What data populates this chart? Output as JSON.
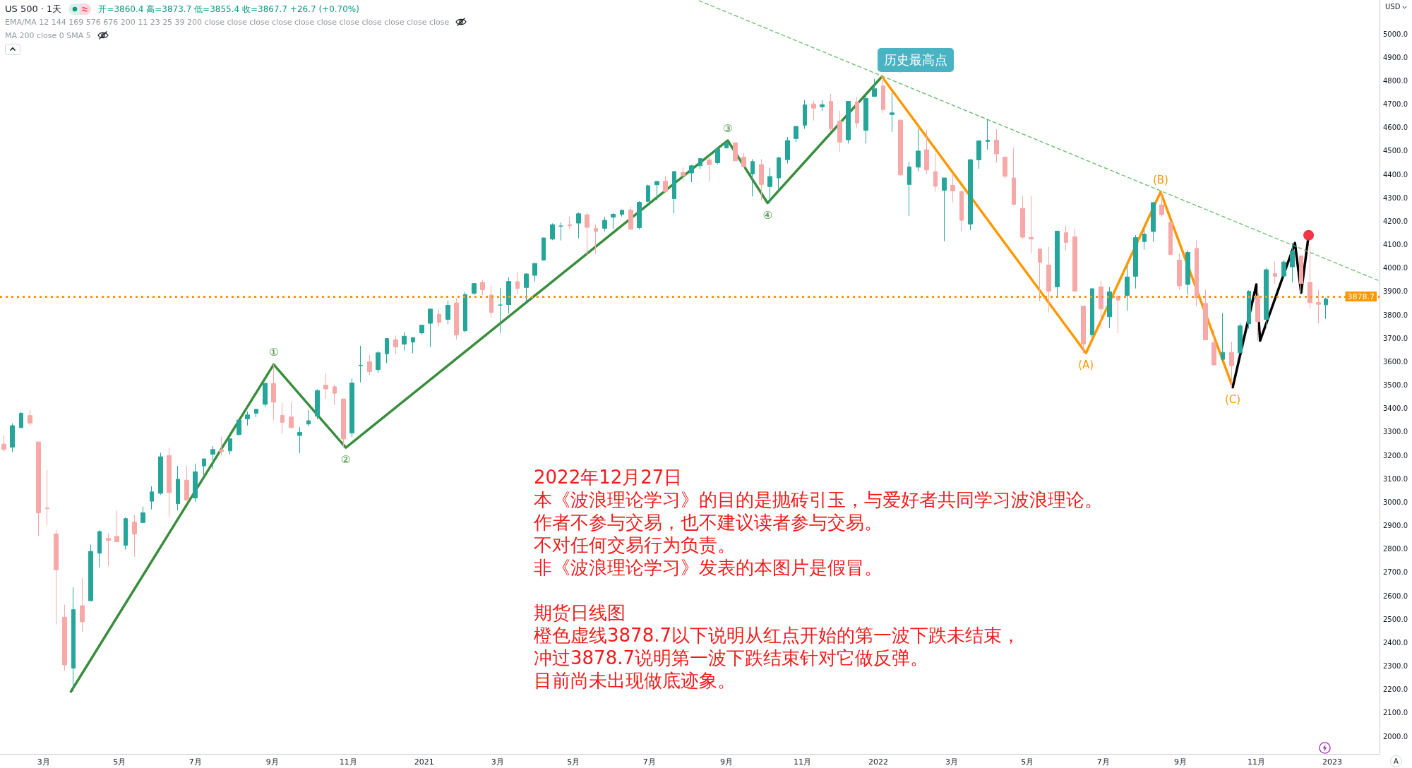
{
  "chart_data": {
    "type": "candlestick",
    "title": "US 500 · 1天",
    "ylabel": "USD",
    "x": [
      "2020-01-29",
      "2020-02-05",
      "2020-02-12",
      "2020-02-19",
      "2020-02-26",
      "2020-03-04",
      "2020-03-11",
      "2020-03-18",
      "2020-03-25",
      "2020-04-01",
      "2020-04-08",
      "2020-04-15",
      "2020-04-22",
      "2020-04-29",
      "2020-05-06",
      "2020-05-13",
      "2020-05-20",
      "2020-05-27",
      "2020-06-03",
      "2020-06-10",
      "2020-06-17",
      "2020-06-24",
      "2020-07-01",
      "2020-07-08",
      "2020-07-15",
      "2020-07-22",
      "2020-07-29",
      "2020-08-05",
      "2020-08-12",
      "2020-08-19",
      "2020-08-26",
      "2020-09-02",
      "2020-09-09",
      "2020-09-16",
      "2020-09-23",
      "2020-09-30",
      "2020-10-07",
      "2020-10-14",
      "2020-10-21",
      "2020-10-28",
      "2020-11-04",
      "2020-11-11",
      "2020-11-18",
      "2020-11-25",
      "2020-12-02",
      "2020-12-09",
      "2020-12-16",
      "2020-12-23",
      "2020-12-30",
      "2021-01-06",
      "2021-01-13",
      "2021-01-20",
      "2021-01-27",
      "2021-02-03",
      "2021-02-10",
      "2021-02-17",
      "2021-02-24",
      "2021-03-03",
      "2021-03-10",
      "2021-03-17",
      "2021-03-24",
      "2021-03-31",
      "2021-04-07",
      "2021-04-14",
      "2021-04-21",
      "2021-04-28",
      "2021-05-05",
      "2021-05-12",
      "2021-05-19",
      "2021-05-26",
      "2021-06-02",
      "2021-06-09",
      "2021-06-16",
      "2021-06-23",
      "2021-06-30",
      "2021-07-07",
      "2021-07-14",
      "2021-07-21",
      "2021-07-28",
      "2021-08-04",
      "2021-08-11",
      "2021-08-18",
      "2021-08-25",
      "2021-09-01",
      "2021-09-08",
      "2021-09-15",
      "2021-09-22",
      "2021-09-29",
      "2021-10-06",
      "2021-10-13",
      "2021-10-20",
      "2021-10-27",
      "2021-11-03",
      "2021-11-10",
      "2021-11-17",
      "2021-11-24",
      "2021-12-01",
      "2021-12-08",
      "2021-12-15",
      "2021-12-22",
      "2021-12-29",
      "2022-01-05",
      "2022-01-12",
      "2022-01-19",
      "2022-01-26",
      "2022-02-02",
      "2022-02-09",
      "2022-02-16",
      "2022-02-23",
      "2022-03-02",
      "2022-03-09",
      "2022-03-16",
      "2022-03-23",
      "2022-03-30",
      "2022-04-06",
      "2022-04-13",
      "2022-04-20",
      "2022-04-27",
      "2022-05-04",
      "2022-05-11",
      "2022-05-18",
      "2022-05-25",
      "2022-06-01",
      "2022-06-08",
      "2022-06-15",
      "2022-06-22",
      "2022-06-29",
      "2022-07-06",
      "2022-07-13",
      "2022-07-20",
      "2022-07-27",
      "2022-08-03",
      "2022-08-10",
      "2022-08-17",
      "2022-08-24",
      "2022-08-31",
      "2022-09-07",
      "2022-09-14",
      "2022-09-21",
      "2022-09-28",
      "2022-10-05",
      "2022-10-12",
      "2022-10-19",
      "2022-10-26",
      "2022-11-02",
      "2022-11-09",
      "2022-11-16",
      "2022-11-23",
      "2022-11-30",
      "2022-12-07",
      "2022-12-14",
      "2022-12-21",
      "2022-12-27"
    ],
    "ohlc": [
      [
        3248,
        3285,
        3214,
        3225
      ],
      [
        3235,
        3337,
        3214,
        3327
      ],
      [
        3319,
        3385,
        3315,
        3380
      ],
      [
        3370,
        3393,
        3328,
        3338
      ],
      [
        3257,
        3259,
        2855,
        2954
      ],
      [
        2975,
        3137,
        2901,
        2972
      ],
      [
        2864,
        2883,
        2478,
        2711
      ],
      [
        2509,
        2562,
        2280,
        2305
      ],
      [
        2291,
        2637,
        2191,
        2541
      ],
      [
        2558,
        2676,
        2447,
        2489
      ],
      [
        2579,
        2819,
        2579,
        2790
      ],
      [
        2782,
        2880,
        2721,
        2875
      ],
      [
        2845,
        2868,
        2727,
        2837
      ],
      [
        2854,
        2965,
        2831,
        2831
      ],
      [
        2816,
        2935,
        2798,
        2930
      ],
      [
        2915,
        2945,
        2767,
        2864
      ],
      [
        2913,
        2981,
        2913,
        2955
      ],
      [
        3004,
        3068,
        2969,
        3044
      ],
      [
        3038,
        3211,
        3032,
        3194
      ],
      [
        3199,
        3233,
        2936,
        3041
      ],
      [
        2994,
        3155,
        2966,
        3098
      ],
      [
        3094,
        3155,
        3004,
        3009
      ],
      [
        3018,
        3165,
        3000,
        3130
      ],
      [
        3155,
        3186,
        3115,
        3185
      ],
      [
        3205,
        3240,
        3142,
        3225
      ],
      [
        3224,
        3280,
        3200,
        3216
      ],
      [
        3219,
        3272,
        3205,
        3271
      ],
      [
        3289,
        3352,
        3284,
        3351
      ],
      [
        3356,
        3387,
        3328,
        3373
      ],
      [
        3380,
        3399,
        3363,
        3397
      ],
      [
        3418,
        3509,
        3407,
        3508
      ],
      [
        3507,
        3588,
        3349,
        3427
      ],
      [
        3371,
        3425,
        3293,
        3341
      ],
      [
        3364,
        3429,
        3314,
        3319
      ],
      [
        3285,
        3320,
        3209,
        3298
      ],
      [
        3334,
        3393,
        3324,
        3348
      ],
      [
        3367,
        3482,
        3354,
        3477
      ],
      [
        3500,
        3550,
        3442,
        3484
      ],
      [
        3493,
        3502,
        3415,
        3465
      ],
      [
        3441,
        3441,
        3233,
        3270
      ],
      [
        3296,
        3529,
        3279,
        3509
      ],
      [
        3583,
        3668,
        3512,
        3585
      ],
      [
        3600,
        3628,
        3543,
        3558
      ],
      [
        3566,
        3645,
        3553,
        3638
      ],
      [
        3634,
        3699,
        3594,
        3699
      ],
      [
        3694,
        3712,
        3633,
        3663
      ],
      [
        3675,
        3726,
        3648,
        3709
      ],
      [
        3684,
        3703,
        3636,
        3703
      ],
      [
        3723,
        3756,
        3715,
        3756
      ],
      [
        3764,
        3826,
        3663,
        3825
      ],
      [
        3803,
        3823,
        3749,
        3768
      ],
      [
        3781,
        3861,
        3760,
        3841
      ],
      [
        3851,
        3870,
        3694,
        3714
      ],
      [
        3732,
        3898,
        3725,
        3887
      ],
      [
        3892,
        3935,
        3885,
        3934
      ],
      [
        3939,
        3950,
        3884,
        3907
      ],
      [
        3885,
        3928,
        3789,
        3811
      ],
      [
        3842,
        3915,
        3723,
        3842
      ],
      [
        3844,
        3960,
        3806,
        3943
      ],
      [
        3942,
        3983,
        3887,
        3913
      ],
      [
        3917,
        3978,
        3853,
        3975
      ],
      [
        3969,
        4020,
        3944,
        4020
      ],
      [
        4034,
        4129,
        4034,
        4129
      ],
      [
        4124,
        4191,
        4119,
        4185
      ],
      [
        4179,
        4195,
        4118,
        4180
      ],
      [
        4185,
        4219,
        4165,
        4181
      ],
      [
        4192,
        4238,
        4128,
        4232
      ],
      [
        4228,
        4236,
        4056,
        4174
      ],
      [
        4169,
        4187,
        4061,
        4156
      ],
      [
        4170,
        4219,
        4156,
        4204
      ],
      [
        4217,
        4234,
        4168,
        4230
      ],
      [
        4229,
        4249,
        4220,
        4247
      ],
      [
        4248,
        4262,
        4164,
        4166
      ],
      [
        4173,
        4286,
        4165,
        4281
      ],
      [
        4285,
        4356,
        4281,
        4352
      ],
      [
        4356,
        4372,
        4290,
        4370
      ],
      [
        4372,
        4394,
        4321,
        4327
      ],
      [
        4296,
        4415,
        4233,
        4412
      ],
      [
        4409,
        4430,
        4373,
        4395
      ],
      [
        4406,
        4440,
        4367,
        4437
      ],
      [
        4437,
        4468,
        4422,
        4468
      ],
      [
        4462,
        4480,
        4368,
        4442
      ],
      [
        4450,
        4510,
        4443,
        4509
      ],
      [
        4513,
        4545,
        4513,
        4535
      ],
      [
        4535,
        4536,
        4457,
        4458
      ],
      [
        4474,
        4492,
        4427,
        4433
      ],
      [
        4402,
        4465,
        4306,
        4455
      ],
      [
        4442,
        4465,
        4289,
        4357
      ],
      [
        4348,
        4429,
        4278,
        4391
      ],
      [
        4385,
        4475,
        4330,
        4471
      ],
      [
        4463,
        4560,
        4447,
        4545
      ],
      [
        4553,
        4608,
        4538,
        4605
      ],
      [
        4610,
        4718,
        4595,
        4697
      ],
      [
        4701,
        4714,
        4630,
        4683
      ],
      [
        4689,
        4717,
        4672,
        4698
      ],
      [
        4712,
        4744,
        4585,
        4595
      ],
      [
        4628,
        4672,
        4495,
        4538
      ],
      [
        4548,
        4713,
        4532,
        4712
      ],
      [
        4710,
        4731,
        4600,
        4620
      ],
      [
        4588,
        4740,
        4532,
        4725
      ],
      [
        4733,
        4808,
        4733,
        4766
      ],
      [
        4778,
        4818,
        4662,
        4677
      ],
      [
        4656,
        4749,
        4582,
        4663
      ],
      [
        4632,
        4632,
        4395,
        4398
      ],
      [
        4357,
        4453,
        4222,
        4432
      ],
      [
        4431,
        4595,
        4414,
        4500
      ],
      [
        4505,
        4590,
        4401,
        4419
      ],
      [
        4412,
        4490,
        4327,
        4349
      ],
      [
        4332,
        4385,
        4115,
        4385
      ],
      [
        4354,
        4402,
        4279,
        4329
      ],
      [
        4327,
        4327,
        4157,
        4204
      ],
      [
        4188,
        4465,
        4162,
        4463
      ],
      [
        4462,
        4546,
        4424,
        4543
      ],
      [
        4541,
        4637,
        4506,
        4546
      ],
      [
        4547,
        4593,
        4450,
        4488
      ],
      [
        4474,
        4475,
        4381,
        4392
      ],
      [
        4385,
        4513,
        4269,
        4272
      ],
      [
        4255,
        4308,
        4124,
        4132
      ],
      [
        4131,
        4308,
        4062,
        4124
      ],
      [
        4081,
        4082,
        3859,
        4024
      ],
      [
        4013,
        4090,
        3811,
        3901
      ],
      [
        3920,
        4159,
        3875,
        4158
      ],
      [
        4151,
        4180,
        4074,
        4109
      ],
      [
        4134,
        4169,
        3901,
        3901
      ],
      [
        3838,
        3838,
        3637,
        3675
      ],
      [
        3715,
        3913,
        3705,
        3912
      ],
      [
        3920,
        3946,
        3741,
        3825
      ],
      [
        3792,
        3918,
        3743,
        3899
      ],
      [
        3880,
        3880,
        3722,
        3863
      ],
      [
        3883,
        4012,
        3818,
        3962
      ],
      [
        3965,
        4141,
        3913,
        4130
      ],
      [
        4113,
        4168,
        4079,
        4145
      ],
      [
        4156,
        4280,
        4112,
        4280
      ],
      [
        4270,
        4325,
        4218,
        4228
      ],
      [
        4195,
        4203,
        4057,
        4058
      ],
      [
        4034,
        4062,
        3907,
        3924
      ],
      [
        3930,
        4076,
        3887,
        4067
      ],
      [
        4084,
        4119,
        3837,
        3873
      ],
      [
        3849,
        3907,
        3693,
        3693
      ],
      [
        3682,
        3736,
        3584,
        3586
      ],
      [
        3610,
        3807,
        3604,
        3640
      ],
      [
        3640,
        3685,
        3491,
        3583
      ],
      [
        3638,
        3765,
        3638,
        3753
      ],
      [
        3762,
        3905,
        3741,
        3901
      ],
      [
        3881,
        3930,
        3690,
        3771
      ],
      [
        3780,
        4001,
        3750,
        3993
      ],
      [
        3977,
        4028,
        3933,
        3965
      ],
      [
        3966,
        4034,
        3956,
        4026
      ],
      [
        4005,
        4107,
        3939,
        4072
      ],
      [
        4052,
        4052,
        3895,
        3934
      ],
      [
        3939,
        4101,
        3827,
        3852
      ],
      [
        3853,
        3906,
        3764,
        3845
      ],
      [
        3843,
        3874,
        3784,
        3868
      ]
    ],
    "colors": [
      "#f7a9a8",
      "#26a69a",
      "#26a69a",
      "#f7a9a8",
      "#f7a9a8",
      "#f7a9a8",
      "#f7a9a8",
      "#f7a9a8",
      "#26a69a",
      "#f7a9a8",
      "#26a69a",
      "#26a69a",
      "#f7a9a8",
      "#f7a9a8",
      "#26a69a",
      "#f7a9a8",
      "#26a69a",
      "#26a69a",
      "#26a69a",
      "#f7a9a8",
      "#26a69a",
      "#f7a9a8",
      "#26a69a",
      "#26a69a",
      "#26a69a",
      "#f7a9a8",
      "#26a69a",
      "#26a69a",
      "#26a69a",
      "#26a69a",
      "#26a69a",
      "#f7a9a8",
      "#f7a9a8",
      "#f7a9a8",
      "#26a69a",
      "#26a69a",
      "#26a69a",
      "#f7a9a8",
      "#f7a9a8",
      "#f7a9a8",
      "#26a69a",
      "#26a69a",
      "#f7a9a8",
      "#26a69a",
      "#26a69a",
      "#f7a9a8",
      "#26a69a",
      "#26a69a",
      "#26a69a",
      "#26a69a",
      "#f7a9a8",
      "#26a69a",
      "#f7a9a8",
      "#26a69a",
      "#26a69a",
      "#f7a9a8",
      "#f7a9a8",
      "#26a69a",
      "#26a69a",
      "#f7a9a8",
      "#26a69a",
      "#26a69a",
      "#26a69a",
      "#26a69a",
      "#26a69a",
      "#f7a9a8",
      "#26a69a",
      "#f7a9a8",
      "#f7a9a8",
      "#26a69a",
      "#26a69a",
      "#26a69a",
      "#f7a9a8",
      "#26a69a",
      "#26a69a",
      "#26a69a",
      "#f7a9a8",
      "#26a69a",
      "#f7a9a8",
      "#26a69a",
      "#26a69a",
      "#f7a9a8",
      "#26a69a",
      "#26a69a",
      "#f7a9a8",
      "#f7a9a8",
      "#26a69a",
      "#f7a9a8",
      "#26a69a",
      "#26a69a",
      "#26a69a",
      "#26a69a",
      "#26a69a",
      "#f7a9a8",
      "#26a69a",
      "#f7a9a8",
      "#f7a9a8",
      "#26a69a",
      "#f7a9a8",
      "#26a69a",
      "#26a69a",
      "#f7a9a8",
      "#26a69a",
      "#f7a9a8",
      "#26a69a",
      "#26a69a",
      "#f7a9a8",
      "#f7a9a8",
      "#26a69a",
      "#f7a9a8",
      "#f7a9a8",
      "#26a69a",
      "#26a69a",
      "#26a69a",
      "#f7a9a8",
      "#f7a9a8",
      "#f7a9a8",
      "#f7a9a8",
      "#f7a9a8",
      "#f7a9a8",
      "#f7a9a8",
      "#26a69a",
      "#f7a9a8",
      "#f7a9a8",
      "#f7a9a8",
      "#26a69a",
      "#f7a9a8",
      "#26a69a",
      "#f7a9a8",
      "#26a69a",
      "#26a69a",
      "#26a69a",
      "#26a69a",
      "#f7a9a8",
      "#f7a9a8",
      "#f7a9a8",
      "#26a69a",
      "#f7a9a8",
      "#f7a9a8",
      "#f7a9a8",
      "#26a69a",
      "#f7a9a8",
      "#26a69a",
      "#26a69a",
      "#f7a9a8",
      "#26a69a",
      "#f7a9a8",
      "#26a69a",
      "#26a69a",
      "#f7a9a8",
      "#f7a9a8",
      "#f7a9a8",
      "#26a69a"
    ],
    "series": [
      {
        "type": "line",
        "color": "#388e3c",
        "x": [
          "2020-03-23",
          "2020-09-02",
          "2020-10-30",
          "2021-09-02",
          "2021-10-04",
          "2022-01-04"
        ],
        "values": [
          2191,
          3588,
          3233,
          4545,
          4278,
          4818
        ],
        "line_style": "solid"
      },
      {
        "type": "line",
        "color": "#ff9800",
        "x": [
          "2022-01-04",
          "2022-06-17",
          "2022-08-16",
          "2022-10-13"
        ],
        "values": [
          4818,
          3637,
          4325,
          3491
        ],
        "line_style": "solid"
      },
      {
        "type": "line",
        "color": "#000000",
        "x": [
          "2022-10-13",
          "2022-11-01",
          "2022-11-04",
          "2022-12-02",
          "2022-12-07",
          "2022-12-13"
        ],
        "values": [
          3491,
          3930,
          3690,
          4107,
          3895,
          4140
        ],
        "line_style": "solid"
      },
      {
        "type": "line",
        "color": "#66bb6a",
        "x": [
          "2021-08-10",
          "2023-02-07"
        ],
        "values": [
          5142,
          3947
        ],
        "line_style": "dashed"
      },
      {
        "type": "scatter",
        "color": "#f23645",
        "x": [
          "2022-12-13"
        ],
        "values": [
          4140
        ],
        "marker": "circle"
      }
    ],
    "xlim": [
      "2020-01-26",
      "2023-02-08"
    ],
    "xticks": [
      {
        "value": "2020-03-01",
        "label": "3月"
      },
      {
        "value": "2020-05-01",
        "label": "5月"
      },
      {
        "value": "2020-07-01",
        "label": "7月"
      },
      {
        "value": "2020-09-01",
        "label": "9月"
      },
      {
        "value": "2020-11-01",
        "label": "11月"
      },
      "2021",
      {
        "value": "2021-03-01",
        "label": "3月"
      },
      {
        "value": "2021-05-01",
        "label": "5月"
      },
      {
        "value": "2021-07-01",
        "label": "7月"
      },
      {
        "value": "2021-09-01",
        "label": "9月"
      },
      {
        "value": "2021-11-01",
        "label": "11月"
      },
      "2022",
      {
        "value": "2022-03-01",
        "label": "3月"
      },
      {
        "value": "2022-05-01",
        "label": "5月"
      },
      {
        "value": "2022-07-01",
        "label": "7月"
      },
      {
        "value": "2022-09-01",
        "label": "9月"
      },
      {
        "value": "2022-11-01",
        "label": "11月"
      },
      "2023"
    ],
    "ylim": [
      1925,
      5145
    ],
    "yticks": [
      {
        "value": 2000,
        "label": "2000.0"
      },
      {
        "value": 2100,
        "label": "2100.0"
      },
      {
        "value": 2200,
        "label": "2200.0"
      },
      {
        "value": 2300,
        "label": "2300.0"
      },
      {
        "value": 2400,
        "label": "2400.0"
      },
      {
        "value": 2500,
        "label": "2500.0"
      },
      {
        "value": 2600,
        "label": "2600.0"
      },
      {
        "value": 2700,
        "label": "2700.0"
      },
      {
        "value": 2800,
        "label": "2800.0"
      },
      {
        "value": 2900,
        "label": "2900.0"
      },
      {
        "value": 3000,
        "label": "3000.0"
      },
      {
        "value": 3100,
        "label": "3100.0"
      },
      {
        "value": 3200,
        "label": "3200.0"
      },
      {
        "value": 3300,
        "label": "3300.0"
      },
      {
        "value": 3400,
        "label": "3400.0"
      },
      {
        "value": 3500,
        "label": "3500.0"
      },
      {
        "value": 3600,
        "label": "3600.0"
      },
      {
        "value": 3700,
        "label": "3700.0"
      },
      {
        "value": 3800,
        "label": "3800.0"
      },
      {
        "value": 3900,
        "label": "3900.0"
      },
      {
        "value": 4000,
        "label": "4000.0"
      },
      {
        "value": 4100,
        "label": "4100.0"
      },
      {
        "value": 4200,
        "label": "4200.0"
      },
      {
        "value": 4300,
        "label": "4300.0"
      },
      {
        "value": 4400,
        "label": "4400.0"
      },
      {
        "value": 4500,
        "label": "4500.0"
      },
      {
        "value": 4600,
        "label": "4600.0"
      },
      {
        "value": 4700,
        "label": "4700.0"
      },
      {
        "value": 4800,
        "label": "4800.0"
      },
      {
        "value": 4900,
        "label": "4900.0"
      },
      {
        "value": 5000,
        "label": "5000.0"
      }
    ],
    "ref_lines": [
      {
        "axis": "y",
        "value": 3878.7,
        "label": "3878.7",
        "color": "#ff9800",
        "line_style": "dotted"
      }
    ],
    "annotations": [
      "开=3860.4 高=3873.7 低=3855.4 收=3867.7 +26.7 (+0.70%)",
      "EMA/MA 12 144 169 576 676 200 11 23 25 39 200 close close close close close close close close close close close",
      "MA 200 close 0 SMA 5",
      "2022年12月27日",
      "本《波浪理论学习》的目的是抛砖引玉，与爱好者共同学习波浪理论。",
      "作者不参与交易，也不建议读者参与交易。",
      "不对任何交易行为负责。",
      "非《波浪理论学习》发表的本图片是假冒。",
      "期货日线图",
      "橙色虚线3878.7以下说明从红点开始的第一波下跌未结束，",
      "冲过3878.7说明第一波下跌结束针对它做反弹。",
      "目前尚未出现做底迹象。",
      {
        "text": "①",
        "x": "2020-09-02",
        "y": 3588
      },
      {
        "text": "②",
        "x": "2020-10-30",
        "y": 3233
      },
      {
        "text": "③",
        "x": "2021-09-02",
        "y": 4545
      },
      {
        "text": "④",
        "x": "2021-10-04",
        "y": 4278
      },
      {
        "text": "(A)",
        "x": "2022-06-17",
        "y": 3637
      },
      {
        "text": "(B)",
        "x": "2022-08-16",
        "y": 4325
      },
      {
        "text": "(C)",
        "x": "2022-10-13",
        "y": 3491
      },
      {
        "text": "历史最高点",
        "x": "2022-01-04",
        "y": 4818
      },
      "A"
    ]
  }
}
